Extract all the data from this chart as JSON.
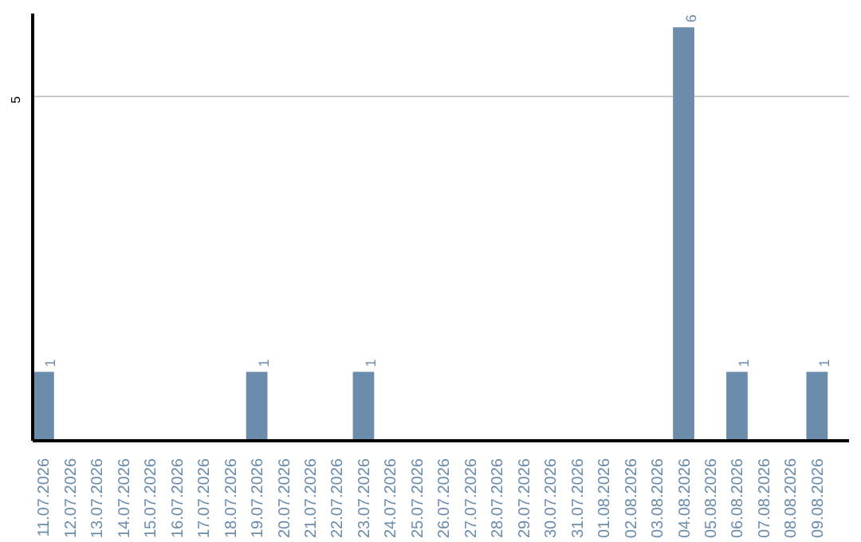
{
  "chart_data": {
    "type": "bar",
    "categories": [
      "11.07.2026",
      "12.07.2026",
      "13.07.2026",
      "14.07.2026",
      "15.07.2026",
      "16.07.2026",
      "17.07.2026",
      "18.07.2026",
      "19.07.2026",
      "20.07.2026",
      "21.07.2026",
      "22.07.2026",
      "23.07.2026",
      "24.07.2026",
      "25.07.2026",
      "26.07.2026",
      "27.07.2026",
      "28.07.2026",
      "29.07.2026",
      "30.07.2026",
      "31.07.2026",
      "01.08.2026",
      "02.08.2026",
      "03.08.2026",
      "04.08.2026",
      "05.08.2026",
      "06.08.2026",
      "07.08.2026",
      "08.08.2026",
      "09.08.2026"
    ],
    "values": [
      1,
      0,
      0,
      0,
      0,
      0,
      0,
      0,
      1,
      0,
      0,
      0,
      1,
      0,
      0,
      0,
      0,
      0,
      0,
      0,
      0,
      0,
      0,
      0,
      6,
      0,
      1,
      0,
      0,
      1
    ],
    "value_labels": [
      "1",
      null,
      null,
      null,
      null,
      null,
      null,
      null,
      "1",
      null,
      null,
      null,
      "1",
      null,
      null,
      null,
      null,
      null,
      null,
      null,
      null,
      null,
      null,
      null,
      "6",
      null,
      "1",
      null,
      null,
      "1"
    ],
    "color": "#6b8cab",
    "ylim": [
      0,
      6.2
    ],
    "yticks": [
      5
    ],
    "grid": "y"
  }
}
